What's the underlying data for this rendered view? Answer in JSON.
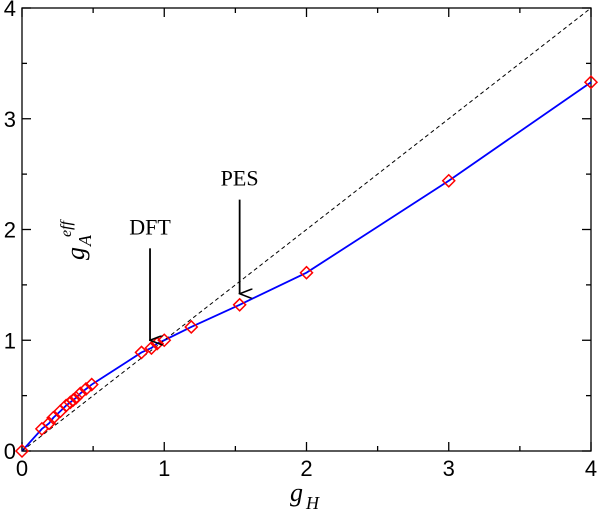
{
  "chart_data": {
    "type": "line",
    "title": "",
    "xlabel": {
      "base": "g",
      "sub": "H"
    },
    "ylabel": {
      "base": "g",
      "sub": "A",
      "sup": "eff"
    },
    "xlim": [
      0,
      4
    ],
    "ylim": [
      0,
      4
    ],
    "x_ticks": [
      "0",
      "1",
      "2",
      "3",
      "4"
    ],
    "y_ticks": [
      "0",
      "1",
      "2",
      "3",
      "4"
    ],
    "grid": false,
    "legend": "none",
    "series": [
      {
        "style": "solid",
        "color": "#0000ff",
        "marker": "diamond",
        "marker_color": "#ff0000",
        "x": [
          0.0,
          0.14,
          0.19,
          0.22,
          0.27,
          0.31,
          0.34,
          0.36,
          0.38,
          0.41,
          0.45,
          0.49,
          0.84,
          0.91,
          0.95,
          1.0,
          1.19,
          1.53,
          2.0,
          3.0,
          4.0
        ],
        "y": [
          0.0,
          0.2,
          0.25,
          0.3,
          0.36,
          0.41,
          0.44,
          0.46,
          0.48,
          0.52,
          0.56,
          0.6,
          0.89,
          0.93,
          0.97,
          1.0,
          1.12,
          1.32,
          1.61,
          2.44,
          3.33
        ]
      },
      {
        "style": "dashed",
        "color": "#000000",
        "x": [
          0,
          4
        ],
        "y": [
          0,
          4
        ]
      }
    ],
    "annotations": [
      {
        "text": "DFT",
        "arrow_x": 0.9,
        "arrow_y_top": 1.83,
        "arrow_y_bottom": 1.0
      },
      {
        "text": "PES",
        "arrow_x": 1.53,
        "arrow_y_top": 2.27,
        "arrow_y_bottom": 1.42
      }
    ]
  }
}
